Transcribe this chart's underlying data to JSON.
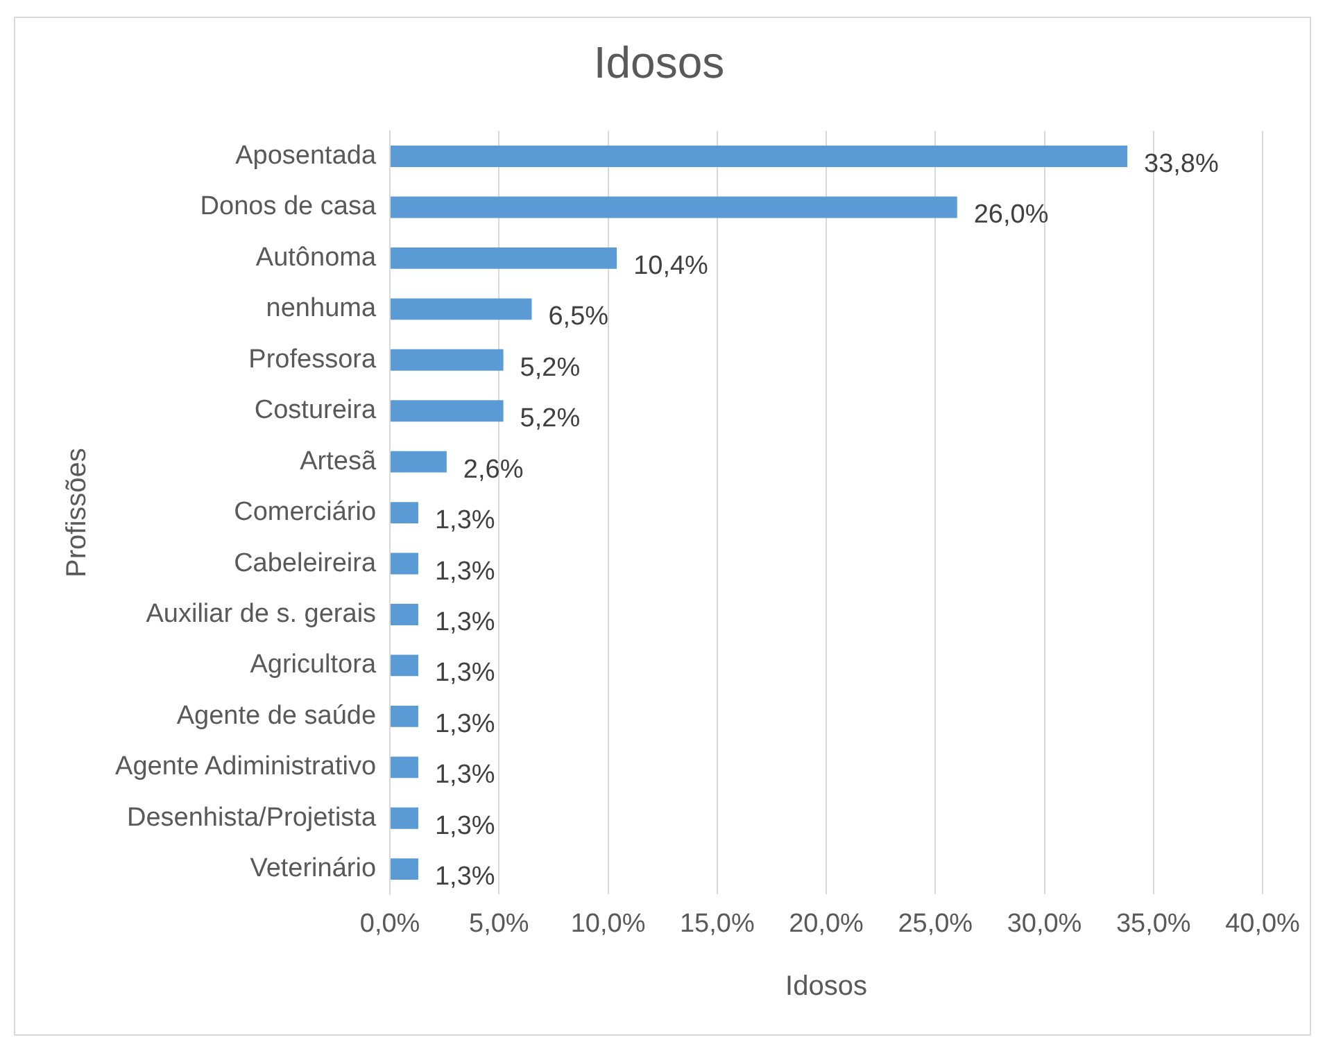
{
  "chart_data": {
    "type": "bar",
    "orientation": "horizontal",
    "title": "Idosos",
    "xlabel": "Idosos",
    "ylabel": "Profissões",
    "categories": [
      "Aposentada",
      "Donos de casa",
      "Autônoma",
      "nenhuma",
      "Professora",
      "Costureira",
      "Artesã",
      "Comerciário",
      "Cabeleireira",
      "Auxiliar de s. gerais",
      "Agricultora",
      "Agente de saúde",
      "Agente Adiministrativo",
      "Desenhista/Projetista",
      "Veterinário"
    ],
    "values": [
      33.8,
      26.0,
      10.4,
      6.5,
      5.2,
      5.2,
      2.6,
      1.3,
      1.3,
      1.3,
      1.3,
      1.3,
      1.3,
      1.3,
      1.3
    ],
    "value_labels": [
      "33,8%",
      "26,0%",
      "10,4%",
      "6,5%",
      "5,2%",
      "5,2%",
      "2,6%",
      "1,3%",
      "1,3%",
      "1,3%",
      "1,3%",
      "1,3%",
      "1,3%",
      "1,3%",
      "1,3%"
    ],
    "color": "#5b9bd5",
    "xlim": [
      0,
      40
    ],
    "xticks": [
      {
        "value": 0,
        "label": "0,0%"
      },
      {
        "value": 5,
        "label": "5,0%"
      },
      {
        "value": 10,
        "label": "10,0%"
      },
      {
        "value": 15,
        "label": "15,0%"
      },
      {
        "value": 20,
        "label": "20,0%"
      },
      {
        "value": 25,
        "label": "25,0%"
      },
      {
        "value": 30,
        "label": "30,0%"
      },
      {
        "value": 35,
        "label": "35,0%"
      },
      {
        "value": 40,
        "label": "40,0%"
      }
    ],
    "grid": "x",
    "legend": false
  }
}
